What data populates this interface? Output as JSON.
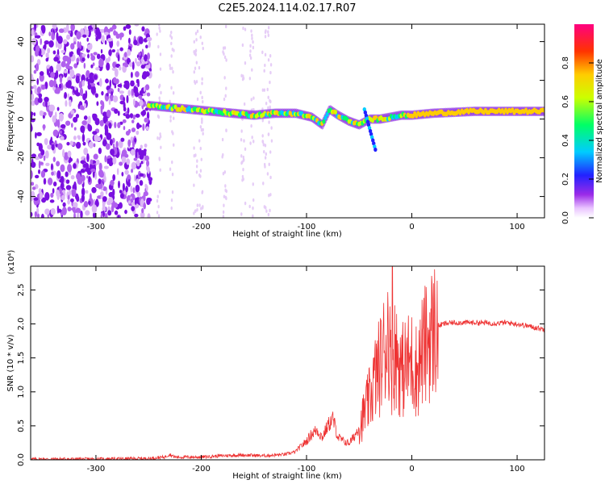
{
  "title": "C2E5.2024.114.02.17.R07",
  "chart_data": [
    {
      "type": "heatmap",
      "xlabel": "Height of straight line (km)",
      "ylabel": "Frequency (Hz)",
      "xlim": [
        -362,
        126
      ],
      "ylim": [
        -51,
        49
      ],
      "xticks": [
        -300,
        -200,
        -100,
        0,
        100
      ],
      "yticks": [
        -40,
        -20,
        0,
        20,
        40
      ],
      "signal_track": {
        "x": [
          -250,
          -230,
          -210,
          -190,
          -170,
          -150,
          -130,
          -110,
          -95,
          -85,
          -78,
          -70,
          -60,
          -50,
          -40,
          -30,
          -20,
          -10,
          0,
          20,
          60,
          100,
          126
        ],
        "y": [
          7,
          6,
          5,
          4,
          3,
          2,
          3,
          3,
          1,
          -3,
          5,
          2,
          -1,
          -3,
          0,
          0,
          1,
          2,
          2,
          3,
          4,
          4,
          4
        ]
      },
      "noise_region": {
        "x_start": -362,
        "x_end": -248
      },
      "colorbar": {
        "label": "Normalized spectral amplitude",
        "ticks": [
          0.0,
          0.2,
          0.4,
          0.6,
          0.8
        ],
        "tick_labels": [
          "0.0",
          "0.2",
          "0.4",
          "0.6",
          "0.8"
        ],
        "range": [
          0,
          1
        ]
      }
    },
    {
      "type": "line",
      "xlabel": "Height of straight line (km)",
      "ylabel": "SNR (10 * v/v)",
      "exponent_label": "(x10⁴)",
      "xlim": [
        -362,
        126
      ],
      "ylim": [
        0,
        2.85
      ],
      "xticks": [
        -300,
        -200,
        -100,
        0,
        100
      ],
      "yticks": [
        0.0,
        0.5,
        1.0,
        1.5,
        2.0,
        2.5
      ],
      "ytick_labels": [
        "0.0",
        "0.5",
        "1.0",
        "1.5",
        "2.0",
        "2.5"
      ],
      "color": "#ee3333",
      "series": [
        {
          "name": "SNR",
          "x": [
            -362,
            -300,
            -250,
            -235,
            -230,
            -225,
            -200,
            -180,
            -160,
            -140,
            -120,
            -110,
            -100,
            -95,
            -90,
            -85,
            -80,
            -75,
            -70,
            -65,
            -60,
            -55,
            -50,
            -45,
            -40,
            -35,
            -30,
            -25,
            -22,
            -20,
            -18,
            -15,
            -10,
            -5,
            0,
            5,
            10,
            15,
            20,
            25,
            30,
            40,
            60,
            80,
            90,
            100,
            110,
            126
          ],
          "y": [
            0.01,
            0.01,
            0.02,
            0.04,
            0.08,
            0.04,
            0.04,
            0.06,
            0.07,
            0.06,
            0.08,
            0.12,
            0.25,
            0.35,
            0.4,
            0.3,
            0.45,
            0.55,
            0.3,
            0.25,
            0.22,
            0.3,
            0.45,
            0.7,
            0.9,
            1.2,
            1.4,
            1.7,
            2.0,
            1.3,
            1.5,
            1.6,
            1.3,
            1.4,
            1.45,
            1.3,
            1.6,
            1.75,
            1.9,
            1.97,
            2.0,
            2.02,
            2.02,
            2.01,
            2.02,
            2.0,
            1.97,
            1.92
          ]
        }
      ]
    }
  ]
}
